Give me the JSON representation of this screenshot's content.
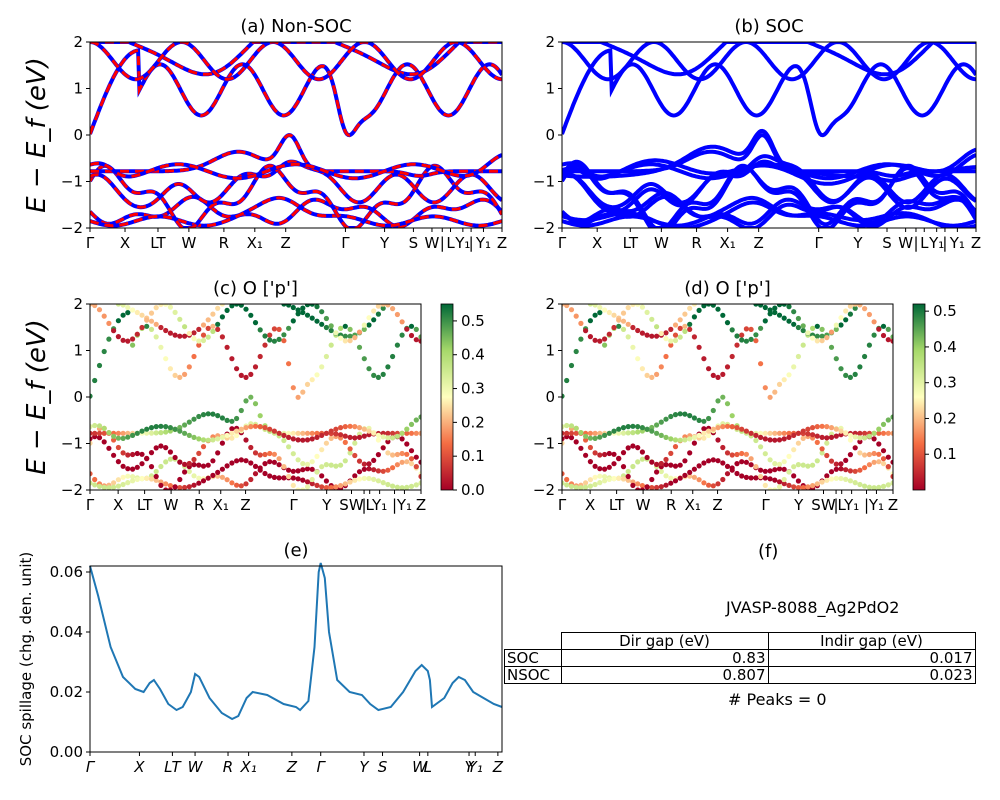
{
  "chart_data": [
    {
      "id": "a",
      "type": "line",
      "title": "(a) Non-SOC",
      "ylabel": "E − E_f (eV)",
      "ylim": [
        -2,
        2
      ],
      "yticks": [
        "−2",
        "−1",
        "0",
        "1",
        "2"
      ],
      "kpath": [
        "Γ",
        "X",
        "LT",
        "W",
        "R",
        "X₁",
        "Z",
        "Γ",
        "Y",
        "S",
        "W",
        "|",
        "L",
        "Y₁",
        "|",
        "Y₁",
        "Z"
      ],
      "series": [
        {
          "color": "#ff0000"
        },
        {
          "color": "#0000ff"
        }
      ]
    },
    {
      "id": "b",
      "type": "line",
      "title": "(b) SOC",
      "ylim": [
        -2,
        2
      ],
      "yticks": [
        "−2",
        "−1",
        "0",
        "1",
        "2"
      ],
      "kpath": [
        "Γ",
        "X",
        "LT",
        "W",
        "R",
        "X₁",
        "Z",
        "Γ",
        "Y",
        "S",
        "W",
        "|",
        "L",
        "Y₁",
        "|",
        "Y₁",
        "Z"
      ],
      "series": [
        {
          "color": "#0000ff"
        }
      ]
    },
    {
      "id": "c",
      "type": "scatter",
      "title": "(c)  O ['p']",
      "ylabel": "E − E_f (eV)",
      "ylim": [
        -2,
        2
      ],
      "yticks": [
        "−2",
        "−1",
        "0",
        "1",
        "2"
      ],
      "kpath": [
        "Γ",
        "X",
        "LT",
        "W",
        "R",
        "X₁",
        "Z",
        "Γ",
        "Y",
        "SW",
        "|",
        "L",
        "Y₁",
        "|",
        "Y₁",
        "Z"
      ],
      "colorbar": {
        "min": 0.0,
        "max": 0.55,
        "ticks": [
          "0.0",
          "0.1",
          "0.2",
          "0.3",
          "0.4",
          "0.5"
        ],
        "colormap": "RdYlGn"
      }
    },
    {
      "id": "d",
      "type": "scatter",
      "title": "(d) O ['p']",
      "ylim": [
        -2,
        2
      ],
      "yticks": [
        "−2",
        "−1",
        "0",
        "1",
        "2"
      ],
      "kpath": [
        "Γ",
        "X",
        "LT",
        "W",
        "R",
        "X₁",
        "Z",
        "Γ",
        "Y",
        "SW",
        "|",
        "L",
        "Y₁",
        "|",
        "Y₁",
        "Z"
      ],
      "colorbar": {
        "min": 0.0,
        "max": 0.52,
        "ticks": [
          "0.1",
          "0.2",
          "0.3",
          "0.4",
          "0.5"
        ],
        "colormap": "RdYlGn"
      }
    },
    {
      "id": "e",
      "type": "line",
      "title": "(e)",
      "ylabel": "SOC spillage (chg. den. unit)",
      "ylim": [
        0,
        0.062
      ],
      "yticks": [
        "0.00",
        "0.02",
        "0.04",
        "0.06"
      ],
      "kpath": [
        "Γ",
        "X",
        "LT",
        "W",
        "R",
        "X₁",
        "Z",
        "Γ",
        "Y",
        "S",
        "W",
        "L",
        "Y",
        "Y₁",
        "Z"
      ],
      "series": [
        {
          "color": "#1f77b4"
        }
      ]
    }
  ],
  "panel_f": {
    "title": "(f)",
    "material": "JVASP-8088_Ag2PdO2",
    "headers": [
      "Dir gap (eV)",
      "Indir gap (eV)"
    ],
    "rows": [
      {
        "label": "SOC",
        "dir": "0.83",
        "indir": "0.017"
      },
      {
        "label": "NSOC",
        "dir": "0.807",
        "indir": "0.023"
      }
    ],
    "peaks": "# Peaks = 0"
  }
}
